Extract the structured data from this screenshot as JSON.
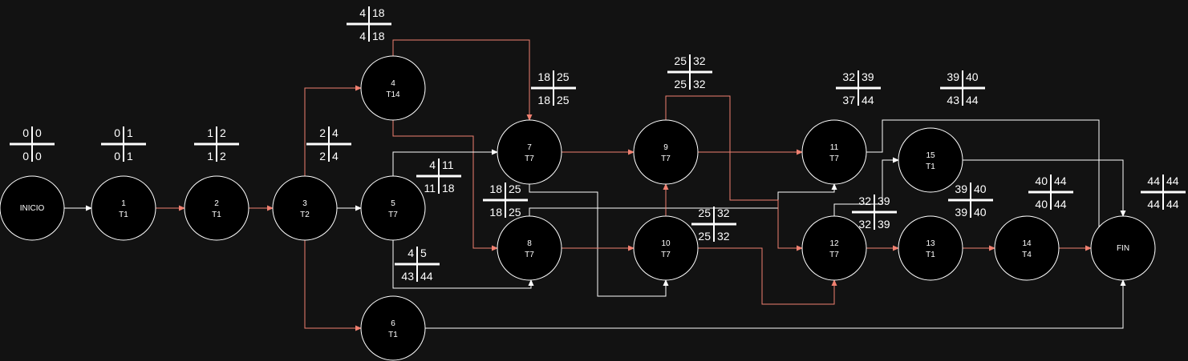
{
  "colors": {
    "background": "#121212",
    "node_fill": "#000000",
    "node_stroke": "#ffffff",
    "critical_edge": "#f08070",
    "normal_edge": "#ffffff",
    "text": "#ffffff"
  },
  "nodes": [
    {
      "id": "INICIO",
      "line1": "INICIO",
      "line2": ""
    },
    {
      "id": "1",
      "line1": "1",
      "line2": "T1"
    },
    {
      "id": "2",
      "line1": "2",
      "line2": "T1"
    },
    {
      "id": "3",
      "line1": "3",
      "line2": "T2"
    },
    {
      "id": "4",
      "line1": "4",
      "line2": "T14"
    },
    {
      "id": "5",
      "line1": "5",
      "line2": "T7"
    },
    {
      "id": "6",
      "line1": "6",
      "line2": "T1"
    },
    {
      "id": "7",
      "line1": "7",
      "line2": "T7"
    },
    {
      "id": "8",
      "line1": "8",
      "line2": "T7"
    },
    {
      "id": "9",
      "line1": "9",
      "line2": "T7"
    },
    {
      "id": "10",
      "line1": "10",
      "line2": "T7"
    },
    {
      "id": "11",
      "line1": "11",
      "line2": "T7"
    },
    {
      "id": "12",
      "line1": "12",
      "line2": "T7"
    },
    {
      "id": "13",
      "line1": "13",
      "line2": "T1"
    },
    {
      "id": "14",
      "line1": "14",
      "line2": "T4"
    },
    {
      "id": "15",
      "line1": "15",
      "line2": "T1"
    },
    {
      "id": "FIN",
      "line1": "FIN",
      "line2": ""
    }
  ],
  "time_boxes": [
    {
      "node": "INICIO",
      "tl": "0",
      "tr": "0",
      "bl": "0",
      "br": "0"
    },
    {
      "node": "1",
      "tl": "0",
      "tr": "1",
      "bl": "0",
      "br": "1"
    },
    {
      "node": "2",
      "tl": "1",
      "tr": "2",
      "bl": "1",
      "br": "2"
    },
    {
      "node": "3",
      "tl": "2",
      "tr": "4",
      "bl": "2",
      "br": "4"
    },
    {
      "node": "4",
      "tl": "4",
      "tr": "18",
      "bl": "4",
      "br": "18"
    },
    {
      "node": "5",
      "tl": "4",
      "tr": "11",
      "bl": "11",
      "br": "18"
    },
    {
      "node": "6",
      "tl": "4",
      "tr": "5",
      "bl": "43",
      "br": "44"
    },
    {
      "node": "7",
      "tl": "18",
      "tr": "25",
      "bl": "18",
      "br": "25"
    },
    {
      "node": "8",
      "tl": "18",
      "tr": "25",
      "bl": "18",
      "br": "25"
    },
    {
      "node": "9",
      "tl": "25",
      "tr": "32",
      "bl": "25",
      "br": "32"
    },
    {
      "node": "10",
      "tl": "25",
      "tr": "32",
      "bl": "25",
      "br": "32"
    },
    {
      "node": "11",
      "tl": "32",
      "tr": "39",
      "bl": "37",
      "br": "44"
    },
    {
      "node": "12",
      "tl": "32",
      "tr": "39",
      "bl": "32",
      "br": "39"
    },
    {
      "node": "13",
      "tl": "39",
      "tr": "40",
      "bl": "39",
      "br": "40"
    },
    {
      "node": "14",
      "tl": "40",
      "tr": "44",
      "bl": "40",
      "br": "44"
    },
    {
      "node": "15",
      "tl": "39",
      "tr": "40",
      "bl": "43",
      "br": "44"
    },
    {
      "node": "FIN",
      "tl": "44",
      "tr": "44",
      "bl": "44",
      "br": "44"
    }
  ],
  "edges": [
    {
      "from": "INICIO",
      "to": "1",
      "critical": false
    },
    {
      "from": "1",
      "to": "2",
      "critical": true
    },
    {
      "from": "2",
      "to": "3",
      "critical": true
    },
    {
      "from": "3",
      "to": "4",
      "critical": true
    },
    {
      "from": "3",
      "to": "5",
      "critical": false
    },
    {
      "from": "3",
      "to": "6",
      "critical": true
    },
    {
      "from": "4",
      "to": "7",
      "critical": true
    },
    {
      "from": "4",
      "to": "8",
      "critical": true
    },
    {
      "from": "5",
      "to": "7",
      "critical": false
    },
    {
      "from": "5",
      "to": "8",
      "critical": false
    },
    {
      "from": "6",
      "to": "FIN",
      "critical": false
    },
    {
      "from": "7",
      "to": "9",
      "critical": true
    },
    {
      "from": "7",
      "to": "10",
      "critical": false
    },
    {
      "from": "8",
      "to": "10",
      "critical": true
    },
    {
      "from": "8",
      "to": "11",
      "critical": false
    },
    {
      "from": "9",
      "to": "11",
      "critical": true
    },
    {
      "from": "9",
      "to": "12",
      "critical": true
    },
    {
      "from": "10",
      "to": "9",
      "critical": true
    },
    {
      "from": "10",
      "to": "12",
      "critical": true
    },
    {
      "from": "11",
      "to": "FIN",
      "critical": false
    },
    {
      "from": "12",
      "to": "15",
      "critical": false
    },
    {
      "from": "12",
      "to": "13",
      "critical": true
    },
    {
      "from": "13",
      "to": "14",
      "critical": true
    },
    {
      "from": "14",
      "to": "FIN",
      "critical": true
    },
    {
      "from": "15",
      "to": "FIN",
      "critical": false
    }
  ]
}
